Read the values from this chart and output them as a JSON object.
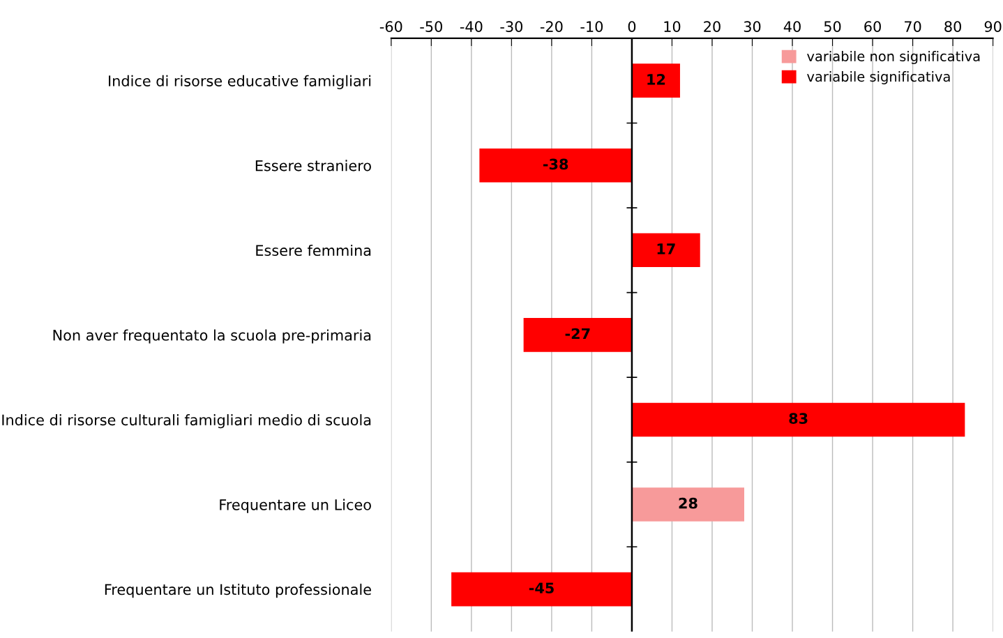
{
  "chart_data": {
    "type": "bar",
    "orientation": "horizontal",
    "categories": [
      "Indice di risorse educative famigliari",
      "Essere straniero",
      "Essere femmina",
      "Non aver frequentato la scuola pre-primaria",
      "Indice di risorse culturali famigliari medio di scuola",
      "Frequentare un Liceo",
      "Frequentare un Istituto professionale"
    ],
    "series": [
      {
        "name": "variabile non significativa",
        "color": "#f79a9a",
        "values": [
          null,
          null,
          null,
          null,
          null,
          28,
          null
        ]
      },
      {
        "name": "variabile significativa",
        "color": "#ff0000",
        "values": [
          12,
          -38,
          17,
          -27,
          83,
          null,
          -45
        ]
      }
    ],
    "xlim": [
      -60,
      90
    ],
    "xticks": [
      -60,
      -50,
      -40,
      -30,
      -20,
      -10,
      0,
      10,
      20,
      30,
      40,
      50,
      60,
      70,
      80,
      90
    ],
    "grid": "x",
    "legend": "top right",
    "data_labels": true
  }
}
